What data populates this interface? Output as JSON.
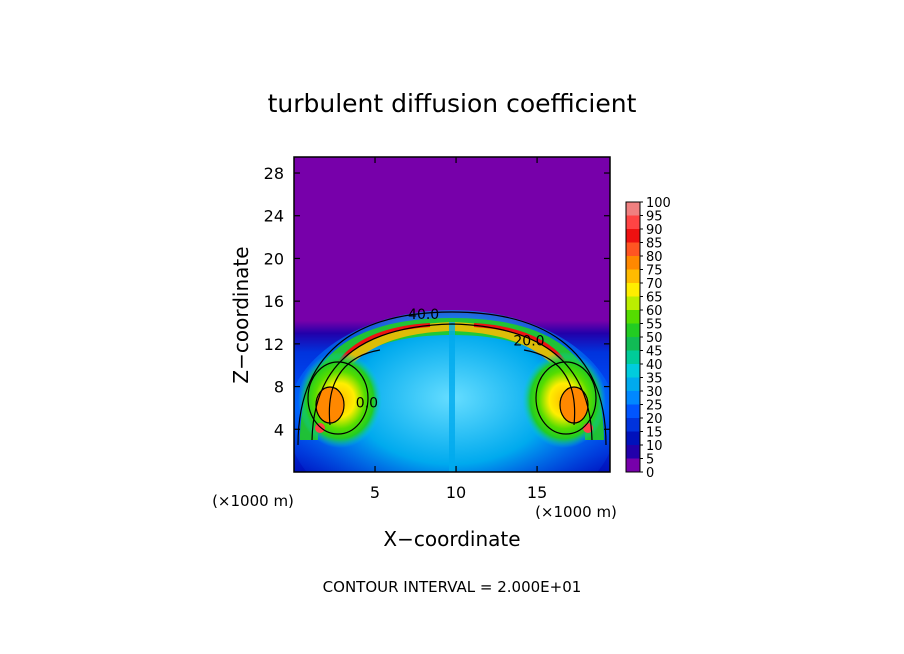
{
  "chart_data": {
    "type": "heatmap",
    "title": "turbulent diffusion coefficient",
    "xlabel": "X−coordinate",
    "ylabel": "Z−coordinate",
    "x_unit_left": "(×1000 m)",
    "x_unit_right": "(×1000 m)",
    "xlim": [
      0,
      19.5
    ],
    "ylim": [
      0,
      29.5
    ],
    "x_ticks": [
      5,
      10,
      15
    ],
    "y_ticks": [
      4,
      8,
      12,
      16,
      20,
      24,
      28
    ],
    "contour_interval_text": "CONTOUR INTERVAL = 2.000E+01",
    "contour_labels": [
      {
        "text": "40.0",
        "x": 8.0,
        "z": 14.8
      },
      {
        "text": "20.0",
        "x": 14.5,
        "z": 12.3
      },
      {
        "text": "0.0",
        "x": 4.5,
        "z": 6.5
      }
    ],
    "colorbar": {
      "min": 0,
      "max": 100,
      "step": 5,
      "labels": [
        "100",
        "95",
        "90",
        "85",
        "80",
        "75",
        "70",
        "65",
        "60",
        "55",
        "50",
        "45",
        "40",
        "35",
        "30",
        "25",
        "20",
        "15",
        "10",
        "5",
        "0"
      ],
      "colors": [
        "#f08080",
        "#ff4444",
        "#ee1111",
        "#ff5522",
        "#ff8800",
        "#ffbb00",
        "#ffee00",
        "#bbee00",
        "#55dd00",
        "#22cc22",
        "#11bb55",
        "#00cc99",
        "#00ccdd",
        "#00aaee",
        "#0088ff",
        "#0055ff",
        "#0033dd",
        "#0011bb",
        "#2200aa",
        "#7700aa"
      ]
    }
  }
}
